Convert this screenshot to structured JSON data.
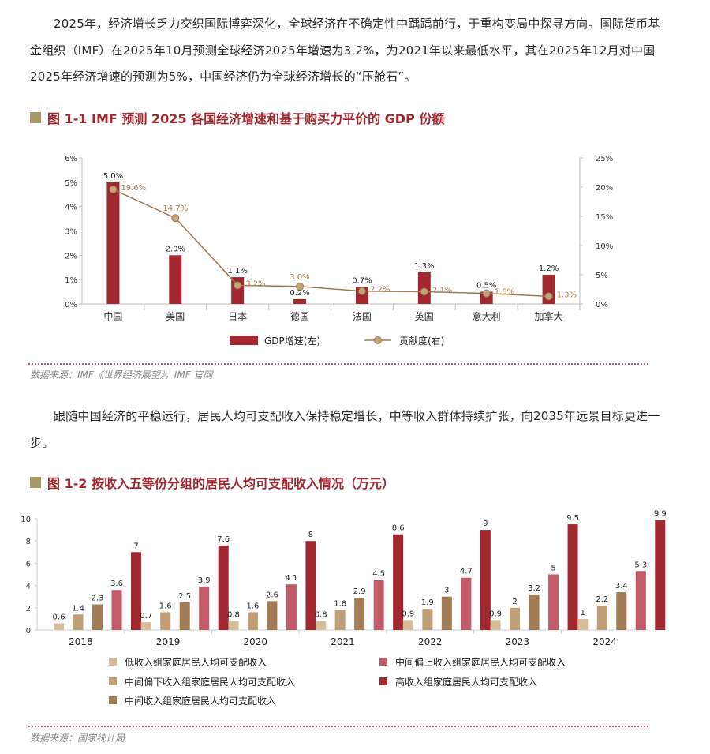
{
  "paragraphs": [
    "2025年，经济增长乏力交织国际博弈深化，全球经济在不确定性中踽踽前行，于重构变局中探寻方向。国际货币基金组织（IMF）在2025年10月预测全球经济2025年增速为3.2%，为2021年以来最低水平，其在2025年12月对中国2025年经济增速的预测为5%，中国经济仍为全球经济增长的“压舱石”。",
    "跟随中国经济的平稳运行，居民人均可支配收入保持稳定增长，中等收入群体持续扩张，向2035年远景目标更进一步。"
  ],
  "figures": [
    {
      "title": "图 1-1  IMF 预测 2025 各国经济增速和基于购买力平价的 GDP 份额",
      "source": "数据来源：IMF《世界经济展望》，IMF 官网"
    },
    {
      "title": "图 1-2  按收入五等份分组的居民人均可支配收入情况（万元）",
      "source": "数据来源：国家统计局"
    }
  ],
  "colors": {
    "accent": "#a3262f",
    "title_square": "#a8996a",
    "line": "#a07850",
    "line_label": "#b07848"
  },
  "chart_data": [
    {
      "type": "bar+line",
      "categories": [
        "中国",
        "美国",
        "日本",
        "德国",
        "法国",
        "英国",
        "意大利",
        "加拿大"
      ],
      "series": [
        {
          "name": "GDP增速(左)",
          "type": "bar",
          "axis": "left",
          "values": [
            5.0,
            2.0,
            1.1,
            0.2,
            0.7,
            1.3,
            0.5,
            1.2
          ],
          "labels": [
            "5.0%",
            "2.0%",
            "1.1%",
            "0.2%",
            "0.7%",
            "1.3%",
            "0.5%",
            "1.2%"
          ],
          "color": "#a1282f"
        },
        {
          "name": "贡献度(右)",
          "type": "line",
          "axis": "right",
          "values": [
            19.6,
            14.7,
            3.2,
            3.0,
            2.2,
            2.1,
            1.8,
            1.3
          ],
          "labels": [
            "19.6%",
            "14.7%",
            "3.2%",
            "3.0%",
            "2.2%",
            "2.1%",
            "1.8%",
            "1.3%"
          ],
          "color": "#a07850"
        }
      ],
      "y_left": {
        "range": [
          0,
          6
        ],
        "ticks": [
          "0%",
          "1%",
          "2%",
          "3%",
          "4%",
          "5%",
          "6%"
        ]
      },
      "y_right": {
        "range": [
          0,
          25
        ],
        "ticks": [
          "0%",
          "5%",
          "10%",
          "15%",
          "20%",
          "25%"
        ]
      },
      "grid": false,
      "legend": "bottom"
    },
    {
      "type": "bar",
      "categories": [
        "2018",
        "2019",
        "2020",
        "2021",
        "2022",
        "2023",
        "2024"
      ],
      "series": [
        {
          "name": "低收入组家庭居民人均可支配收入",
          "values": [
            0.6,
            0.7,
            0.8,
            0.8,
            0.9,
            0.9,
            1.0
          ],
          "color": "#d6bd99"
        },
        {
          "name": "中间偏下收入组家庭居民人均可支配收入",
          "values": [
            1.4,
            1.6,
            1.6,
            1.8,
            1.9,
            2.0,
            2.2
          ],
          "color": "#c19f76"
        },
        {
          "name": "中间收入组家庭居民人均可支配收入",
          "values": [
            2.3,
            2.5,
            2.6,
            2.9,
            3.0,
            3.2,
            3.4
          ],
          "color": "#a27c55"
        },
        {
          "name": "中间偏上收入组家庭居民人均可支配收入",
          "values": [
            3.6,
            3.9,
            4.1,
            4.5,
            4.7,
            5.0,
            5.3
          ],
          "color": "#c35a67"
        },
        {
          "name": "高收入组家庭居民人均可支配收入",
          "values": [
            7.0,
            7.6,
            8.0,
            8.6,
            9.0,
            9.5,
            9.9
          ],
          "color": "#a1282f"
        }
      ],
      "ylim": [
        0,
        10
      ],
      "y_ticks": [
        "0",
        "2",
        "4",
        "6",
        "8",
        "10"
      ],
      "grid": false,
      "legend": "bottom"
    }
  ]
}
